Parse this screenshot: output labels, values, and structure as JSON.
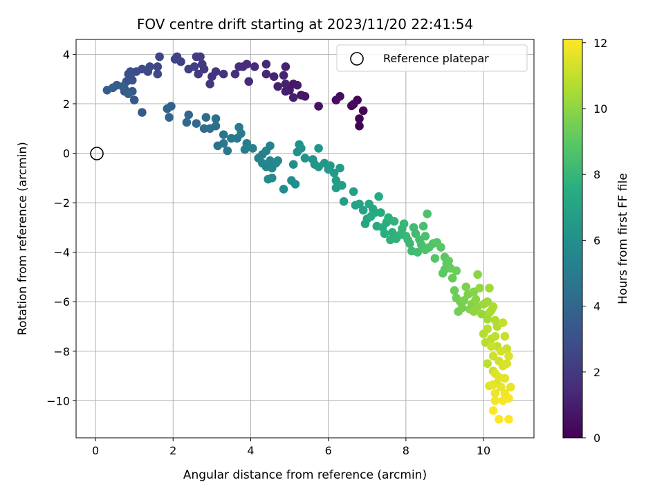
{
  "chart_data": {
    "type": "scatter",
    "title": "FOV centre drift starting at 2023/11/20 22:41:54",
    "xlabel": "Angular distance from reference (arcmin)",
    "ylabel": "Rotation from reference (arcmin)",
    "colorbar_label": "Hours from first FF file",
    "colormap": "viridis",
    "grid": true,
    "legend_position": "top-right",
    "xlim": [
      -0.5,
      11.3
    ],
    "ylim": [
      -11.5,
      4.6
    ],
    "clim": [
      0,
      12.1
    ],
    "xticks": [
      0,
      2,
      4,
      6,
      8,
      10
    ],
    "yticks": [
      4,
      2,
      0,
      -2,
      -4,
      -6,
      -8,
      -10
    ],
    "cticks": [
      0,
      2,
      4,
      6,
      8,
      10,
      12
    ],
    "reference": {
      "label": "Reference platepar",
      "x": 0,
      "y": 0
    },
    "points": [
      [
        6.8,
        1.1,
        0.05
      ],
      [
        6.8,
        1.4,
        0.1
      ],
      [
        6.9,
        1.72,
        0.15
      ],
      [
        6.75,
        2.15,
        0.2
      ],
      [
        6.6,
        1.92,
        0.25
      ],
      [
        6.65,
        1.98,
        0.3
      ],
      [
        6.3,
        2.3,
        0.4
      ],
      [
        6.2,
        2.15,
        0.45
      ],
      [
        5.75,
        1.9,
        0.6
      ],
      [
        5.4,
        2.3,
        0.7
      ],
      [
        5.3,
        2.35,
        0.75
      ],
      [
        5.1,
        2.8,
        0.8
      ],
      [
        5.0,
        2.55,
        0.85
      ],
      [
        5.2,
        2.75,
        0.9
      ],
      [
        4.9,
        2.5,
        0.95
      ],
      [
        5.1,
        2.25,
        1.0
      ],
      [
        4.7,
        2.7,
        1.05
      ],
      [
        4.9,
        2.8,
        1.1
      ],
      [
        4.9,
        3.5,
        1.15
      ],
      [
        4.85,
        3.15,
        1.2
      ],
      [
        4.6,
        3.1,
        1.25
      ],
      [
        4.4,
        3.2,
        1.3
      ],
      [
        4.4,
        3.6,
        1.35
      ],
      [
        4.1,
        3.5,
        1.4
      ],
      [
        3.95,
        2.9,
        1.45
      ],
      [
        3.9,
        3.6,
        1.5
      ],
      [
        3.8,
        3.5,
        1.55
      ],
      [
        3.7,
        3.5,
        1.6
      ],
      [
        3.6,
        3.2,
        1.65
      ],
      [
        3.3,
        3.2,
        1.75
      ],
      [
        3.1,
        3.3,
        1.8
      ],
      [
        3.0,
        3.1,
        1.85
      ],
      [
        2.95,
        2.8,
        1.9
      ],
      [
        2.8,
        3.4,
        1.95
      ],
      [
        2.75,
        3.6,
        2.0
      ],
      [
        2.65,
        3.2,
        2.05
      ],
      [
        2.7,
        3.9,
        2.1
      ],
      [
        2.6,
        3.9,
        2.15
      ],
      [
        2.55,
        3.5,
        2.25
      ],
      [
        2.4,
        3.4,
        2.3
      ],
      [
        2.2,
        3.7,
        2.35
      ],
      [
        2.1,
        3.9,
        2.4
      ],
      [
        2.05,
        3.8,
        2.45
      ],
      [
        1.65,
        3.9,
        2.55
      ],
      [
        1.6,
        3.5,
        2.6
      ],
      [
        1.6,
        3.2,
        2.65
      ],
      [
        1.35,
        3.3,
        2.7
      ],
      [
        1.4,
        3.5,
        2.75
      ],
      [
        1.2,
        3.4,
        2.8
      ],
      [
        1.05,
        3.3,
        2.85
      ],
      [
        0.9,
        3.3,
        2.9
      ],
      [
        0.85,
        3.2,
        2.95
      ],
      [
        0.9,
        3.1,
        3.0
      ],
      [
        0.95,
        2.95,
        3.05
      ],
      [
        0.8,
        2.9,
        3.1
      ],
      [
        0.75,
        2.6,
        3.15
      ],
      [
        0.75,
        2.5,
        3.2
      ],
      [
        0.95,
        2.5,
        3.25
      ],
      [
        1.0,
        2.15,
        3.3
      ],
      [
        1.2,
        1.65,
        3.4
      ],
      [
        0.55,
        2.75,
        3.5
      ],
      [
        0.45,
        2.65,
        3.55
      ],
      [
        0.3,
        2.55,
        3.6
      ],
      [
        0.7,
        2.7,
        3.65
      ],
      [
        0.85,
        2.4,
        3.7
      ],
      [
        1.95,
        1.9,
        3.8
      ],
      [
        1.85,
        1.8,
        3.85
      ],
      [
        1.9,
        1.45,
        3.9
      ],
      [
        2.4,
        1.55,
        4.0
      ],
      [
        2.35,
        1.25,
        4.1
      ],
      [
        2.6,
        1.2,
        4.15
      ],
      [
        2.85,
        1.45,
        4.2
      ],
      [
        2.8,
        1.0,
        4.3
      ],
      [
        2.95,
        1.0,
        4.35
      ],
      [
        3.1,
        1.4,
        4.4
      ],
      [
        3.1,
        1.1,
        4.45
      ],
      [
        3.15,
        0.3,
        4.6
      ],
      [
        3.3,
        0.75,
        4.7
      ],
      [
        3.3,
        0.4,
        4.75
      ],
      [
        3.4,
        0.1,
        4.8
      ],
      [
        3.5,
        0.6,
        4.85
      ],
      [
        3.65,
        0.6,
        4.9
      ],
      [
        3.7,
        1.05,
        4.95
      ],
      [
        3.75,
        0.8,
        5.0
      ],
      [
        3.9,
        0.4,
        5.05
      ],
      [
        3.85,
        0.15,
        5.1
      ],
      [
        4.05,
        0.2,
        5.15
      ],
      [
        4.2,
        -0.2,
        5.2
      ],
      [
        4.3,
        -0.05,
        5.25
      ],
      [
        4.4,
        0.1,
        5.3
      ],
      [
        4.5,
        0.3,
        5.35
      ],
      [
        4.3,
        -0.4,
        5.4
      ],
      [
        4.4,
        -0.55,
        5.45
      ],
      [
        4.5,
        -0.3,
        5.5
      ],
      [
        4.55,
        -0.6,
        5.55
      ],
      [
        4.65,
        -0.4,
        5.6
      ],
      [
        4.7,
        -0.3,
        5.65
      ],
      [
        4.55,
        -1.0,
        5.7
      ],
      [
        4.45,
        -1.05,
        5.75
      ],
      [
        4.85,
        -1.45,
        5.8
      ],
      [
        5.05,
        -1.1,
        5.85
      ],
      [
        5.15,
        -1.25,
        5.9
      ],
      [
        5.1,
        -0.45,
        5.95
      ],
      [
        5.2,
        0.05,
        6.0
      ],
      [
        5.25,
        0.35,
        6.05
      ],
      [
        5.3,
        0.2,
        6.1
      ],
      [
        5.4,
        -0.2,
        6.15
      ],
      [
        5.6,
        -0.25,
        6.2
      ],
      [
        5.75,
        0.2,
        6.25
      ],
      [
        5.65,
        -0.45,
        6.3
      ],
      [
        5.75,
        -0.55,
        6.35
      ],
      [
        5.9,
        -0.4,
        6.4
      ],
      [
        6.0,
        -0.65,
        6.45
      ],
      [
        6.05,
        -0.5,
        6.5
      ],
      [
        6.15,
        -0.8,
        6.55
      ],
      [
        6.3,
        -0.6,
        6.6
      ],
      [
        6.2,
        -1.4,
        6.65
      ],
      [
        6.2,
        -1.1,
        6.7
      ],
      [
        6.35,
        -1.3,
        6.75
      ],
      [
        6.4,
        -1.95,
        6.8
      ],
      [
        6.65,
        -1.55,
        6.85
      ],
      [
        6.7,
        -2.1,
        6.9
      ],
      [
        6.8,
        -2.05,
        6.95
      ],
      [
        6.9,
        -2.3,
        7.0
      ],
      [
        6.95,
        -2.85,
        7.05
      ],
      [
        7.0,
        -2.65,
        7.1
      ],
      [
        7.05,
        -2.05,
        7.15
      ],
      [
        7.15,
        -2.25,
        7.2
      ],
      [
        7.2,
        -2.4,
        7.25
      ],
      [
        7.1,
        -2.55,
        7.3
      ],
      [
        7.25,
        -2.95,
        7.35
      ],
      [
        7.3,
        -1.75,
        7.4
      ],
      [
        7.35,
        -2.4,
        7.45
      ],
      [
        7.4,
        -3.0,
        7.5
      ],
      [
        7.45,
        -3.25,
        7.55
      ],
      [
        7.5,
        -2.8,
        7.6
      ],
      [
        7.55,
        -2.6,
        7.65
      ],
      [
        7.65,
        -3.2,
        7.7
      ],
      [
        7.6,
        -3.5,
        7.75
      ],
      [
        7.75,
        -3.45,
        7.8
      ],
      [
        7.7,
        -2.75,
        7.85
      ],
      [
        7.85,
        -3.3,
        7.9
      ],
      [
        7.9,
        -3.05,
        7.95
      ],
      [
        8.0,
        -3.35,
        8.0
      ],
      [
        7.95,
        -2.85,
        8.05
      ],
      [
        8.05,
        -3.5,
        8.1
      ],
      [
        8.1,
        -3.65,
        8.15
      ],
      [
        8.15,
        -3.95,
        8.2
      ],
      [
        8.2,
        -3.0,
        8.25
      ],
      [
        8.25,
        -3.25,
        8.3
      ],
      [
        8.3,
        -4.0,
        8.35
      ],
      [
        8.35,
        -3.5,
        8.4
      ],
      [
        8.4,
        -3.7,
        8.45
      ],
      [
        8.45,
        -2.95,
        8.5
      ],
      [
        8.5,
        -3.35,
        8.55
      ],
      [
        8.55,
        -2.45,
        8.6
      ],
      [
        8.5,
        -3.9,
        8.65
      ],
      [
        8.6,
        -3.8,
        8.7
      ],
      [
        8.7,
        -3.65,
        8.75
      ],
      [
        8.75,
        -4.25,
        8.8
      ],
      [
        8.8,
        -3.6,
        8.85
      ],
      [
        8.9,
        -3.8,
        8.9
      ],
      [
        9.0,
        -4.2,
        8.95
      ],
      [
        8.95,
        -4.85,
        9.0
      ],
      [
        9.0,
        -4.7,
        9.05
      ],
      [
        9.05,
        -4.45,
        9.1
      ],
      [
        9.1,
        -4.35,
        9.15
      ],
      [
        9.15,
        -4.65,
        9.2
      ],
      [
        9.2,
        -5.05,
        9.25
      ],
      [
        9.3,
        -4.75,
        9.3
      ],
      [
        9.25,
        -5.55,
        9.35
      ],
      [
        9.3,
        -5.85,
        9.4
      ],
      [
        9.35,
        -6.4,
        9.45
      ],
      [
        9.4,
        -6.0,
        9.5
      ],
      [
        9.45,
        -6.25,
        9.55
      ],
      [
        9.5,
        -5.95,
        9.6
      ],
      [
        9.55,
        -5.4,
        9.65
      ],
      [
        9.6,
        -5.7,
        9.7
      ],
      [
        9.65,
        -6.3,
        9.75
      ],
      [
        9.7,
        -6.1,
        9.8
      ],
      [
        9.75,
        -5.6,
        9.85
      ],
      [
        9.8,
        -5.9,
        9.9
      ],
      [
        9.85,
        -4.9,
        9.95
      ],
      [
        9.75,
        -6.4,
        10.0
      ],
      [
        9.85,
        -6.2,
        10.05
      ],
      [
        9.9,
        -5.45,
        10.1
      ],
      [
        9.95,
        -6.5,
        10.15
      ],
      [
        10.0,
        -6.1,
        10.2
      ],
      [
        10.05,
        -6.05,
        10.25
      ],
      [
        10.1,
        -6.0,
        10.3
      ],
      [
        10.15,
        -5.45,
        10.35
      ],
      [
        10.1,
        -6.7,
        10.4
      ],
      [
        10.15,
        -6.45,
        10.45
      ],
      [
        10.2,
        -6.35,
        10.5
      ],
      [
        10.25,
        -6.2,
        10.55
      ],
      [
        10.3,
        -6.75,
        10.6
      ],
      [
        10.35,
        -7.0,
        10.65
      ],
      [
        10.0,
        -7.3,
        10.7
      ],
      [
        10.05,
        -7.65,
        10.75
      ],
      [
        10.1,
        -7.1,
        10.8
      ],
      [
        10.2,
        -7.5,
        10.85
      ],
      [
        10.3,
        -7.4,
        10.9
      ],
      [
        10.35,
        -7.8,
        10.95
      ],
      [
        10.5,
        -6.85,
        11.0
      ],
      [
        10.55,
        -7.4,
        11.05
      ],
      [
        10.6,
        -7.9,
        11.1
      ],
      [
        10.2,
        -7.8,
        11.15
      ],
      [
        10.25,
        -8.2,
        11.2
      ],
      [
        10.4,
        -8.4,
        11.25
      ],
      [
        10.45,
        -8.0,
        11.3
      ],
      [
        10.5,
        -8.6,
        11.35
      ],
      [
        10.6,
        -8.5,
        11.4
      ],
      [
        10.65,
        -8.2,
        11.45
      ],
      [
        10.3,
        -8.9,
        11.5
      ],
      [
        10.4,
        -9.05,
        11.55
      ],
      [
        10.55,
        -9.1,
        11.6
      ],
      [
        10.25,
        -9.35,
        11.65
      ],
      [
        10.45,
        -9.45,
        11.7
      ],
      [
        10.7,
        -9.45,
        11.75
      ],
      [
        10.3,
        -9.7,
        11.8
      ],
      [
        10.55,
        -9.7,
        11.85
      ],
      [
        10.3,
        -10.0,
        11.9
      ],
      [
        10.5,
        -10.0,
        11.95
      ],
      [
        10.65,
        -9.9,
        12.0
      ],
      [
        10.25,
        -10.4,
        12.05
      ],
      [
        10.65,
        -10.75,
        12.08
      ],
      [
        10.4,
        -10.75,
        12.1
      ],
      [
        10.1,
        -8.5,
        10.9
      ],
      [
        10.25,
        -8.8,
        11.1
      ],
      [
        10.35,
        -9.3,
        11.4
      ],
      [
        10.15,
        -9.4,
        11.55
      ]
    ]
  }
}
